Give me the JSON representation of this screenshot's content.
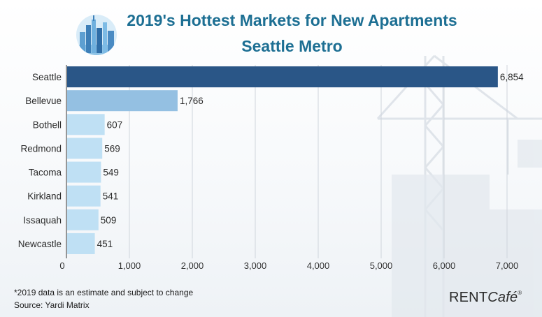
{
  "header": {
    "title_line1": "2019's Hottest Markets for New Apartments",
    "title_line2": "Seattle Metro"
  },
  "footer": {
    "note": "*2019 data is an estimate and subject to change",
    "source": "Source: Yardi Matrix",
    "brand_rent": "RENT",
    "brand_cafe": "Café",
    "brand_mark": "®"
  },
  "logo": {
    "icon": "city-skyline-icon"
  },
  "colors": {
    "title": "#1d6f93",
    "bar_top": "#2a5687",
    "bar_second": "#94c0e2",
    "bar_rest": "#bfe0f4"
  },
  "chart_data": {
    "type": "bar",
    "orientation": "horizontal",
    "title": "2019's Hottest Markets for New Apartments",
    "subtitle": "Seattle Metro",
    "categories": [
      "Seattle",
      "Bellevue",
      "Bothell",
      "Redmond",
      "Tacoma",
      "Kirkland",
      "Issaquah",
      "Newcastle"
    ],
    "values": [
      6854,
      1766,
      607,
      569,
      549,
      541,
      509,
      451
    ],
    "value_labels": [
      "6,854",
      "1,766",
      "607",
      "569",
      "549",
      "541",
      "509",
      "451"
    ],
    "xlim": [
      0,
      7000
    ],
    "x_ticks": [
      0,
      1000,
      2000,
      3000,
      4000,
      5000,
      6000,
      7000
    ],
    "x_tick_labels": [
      "0",
      "1,000",
      "2,000",
      "3,000",
      "4,000",
      "5,000",
      "6,000",
      "7,000"
    ],
    "grid": true,
    "legend": "none"
  }
}
